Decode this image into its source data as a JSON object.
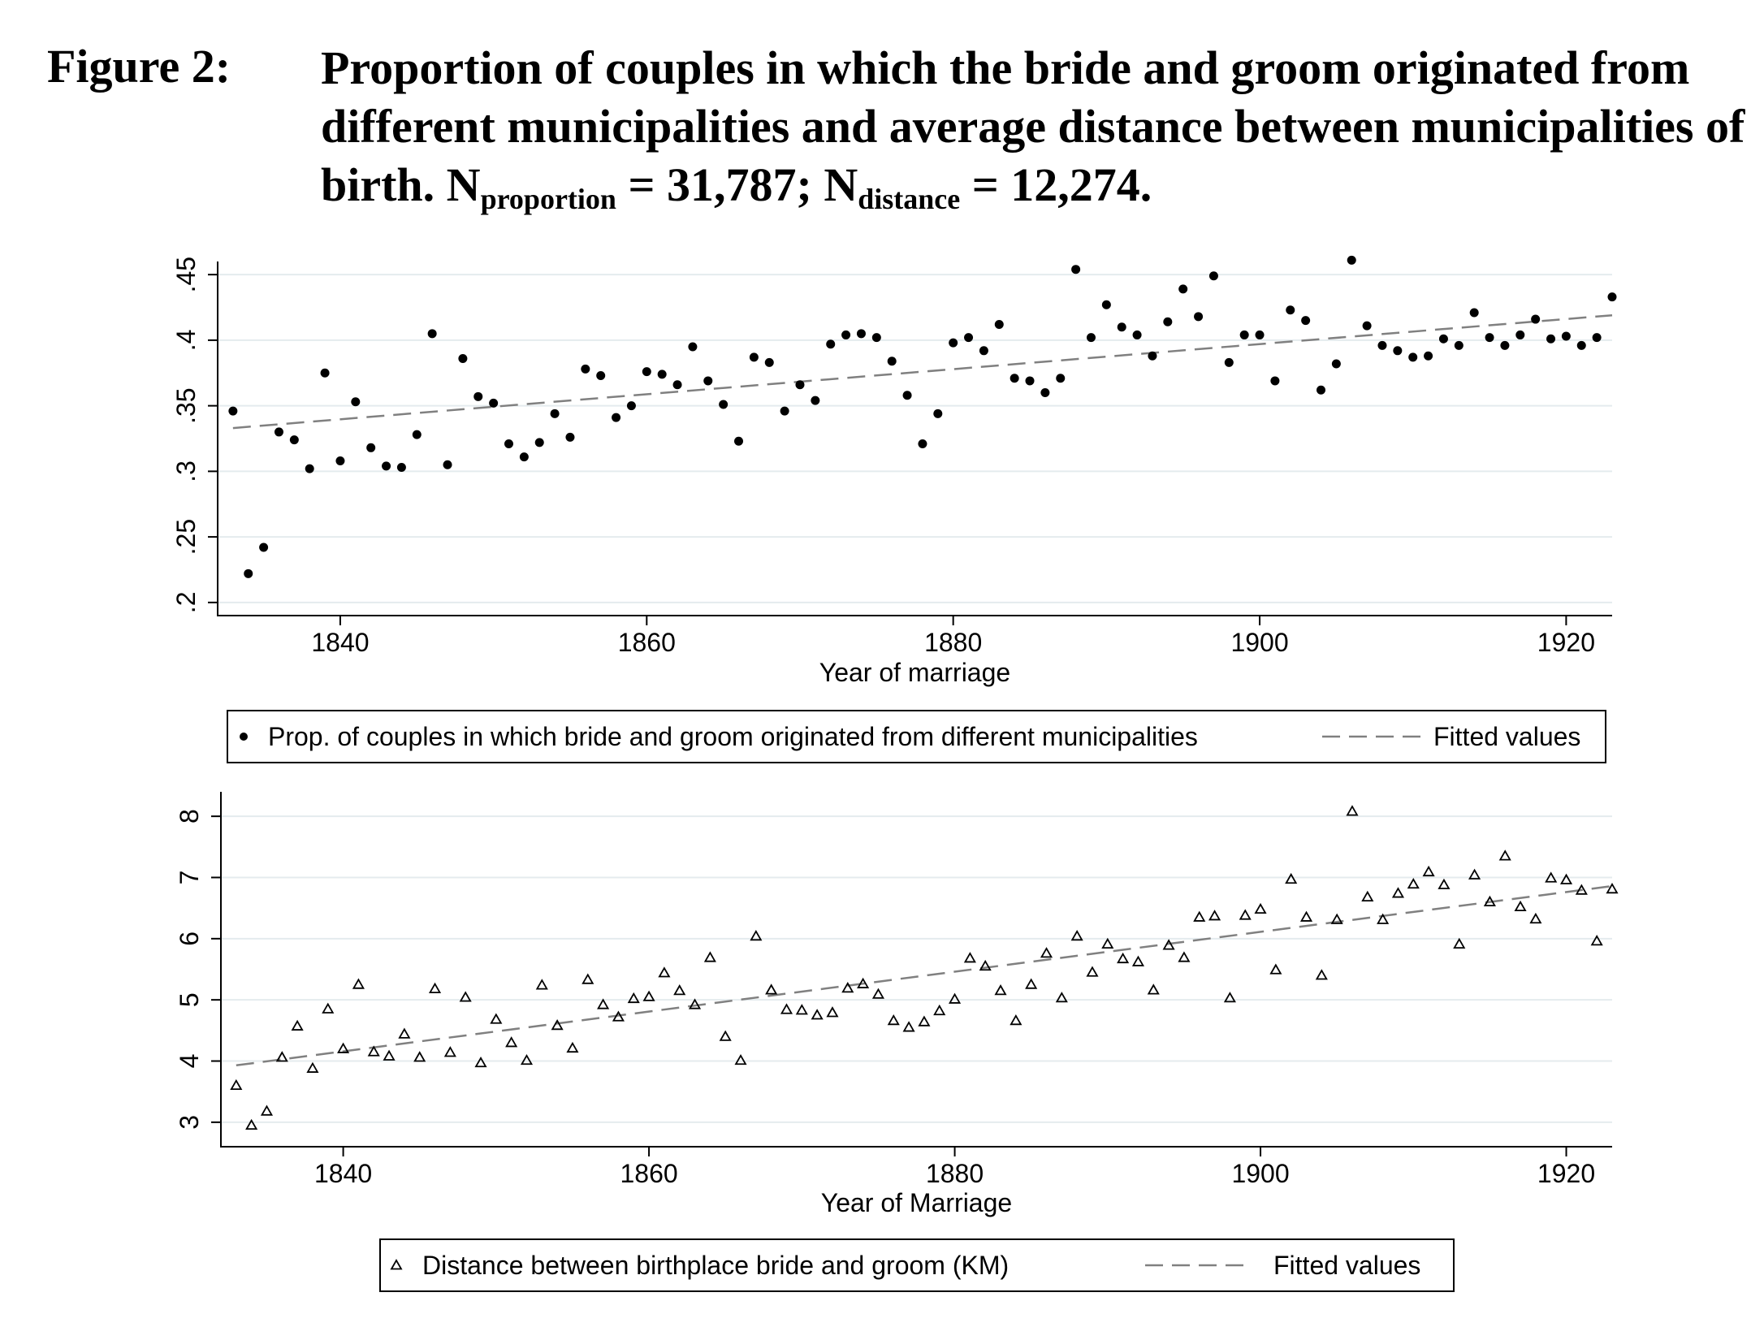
{
  "figure": {
    "label": "Figure 2:",
    "title_main": "Proportion of couples in which the bride and groom originated from different municipalities and average distance between municipalities of birth. N",
    "title_sub1": "proportion",
    "title_mid": " = 31,787; N",
    "title_sub2": "distance",
    "title_end": " = 12,274."
  },
  "chart_data": [
    {
      "type": "scatter",
      "xlabel": "Year of marriage",
      "ylabel": "",
      "xlim": [
        1832,
        1923
      ],
      "ylim": [
        0.19,
        0.46
      ],
      "xticks": [
        1840,
        1860,
        1880,
        1900,
        1920
      ],
      "xtick_labels": [
        "1840",
        "1860",
        "1880",
        "1900",
        "1920"
      ],
      "yticks": [
        0.2,
        0.25,
        0.3,
        0.35,
        0.4,
        0.45
      ],
      "ytick_labels": [
        ".2",
        ".25",
        ".3",
        ".35",
        ".4",
        ".45"
      ],
      "grid": true,
      "legend_position": "bottom",
      "marker": "circle",
      "series": [
        {
          "name": "Prop. of couples in which bride and groom originated from different municipalities",
          "x": [
            1833,
            1834,
            1835,
            1836,
            1837,
            1838,
            1839,
            1840,
            1841,
            1842,
            1843,
            1844,
            1845,
            1846,
            1847,
            1848,
            1849,
            1850,
            1851,
            1852,
            1853,
            1854,
            1855,
            1856,
            1857,
            1858,
            1859,
            1860,
            1861,
            1862,
            1863,
            1864,
            1865,
            1866,
            1867,
            1868,
            1869,
            1870,
            1871,
            1872,
            1873,
            1874,
            1875,
            1876,
            1877,
            1878,
            1879,
            1880,
            1881,
            1882,
            1883,
            1884,
            1885,
            1886,
            1887,
            1888,
            1889,
            1890,
            1891,
            1892,
            1893,
            1894,
            1895,
            1896,
            1897,
            1898,
            1899,
            1900,
            1901,
            1902,
            1903,
            1904,
            1905,
            1906,
            1907,
            1908,
            1909,
            1910,
            1911,
            1912,
            1913,
            1914,
            1915,
            1916,
            1917,
            1918,
            1919,
            1920,
            1921,
            1922,
            1923
          ],
          "y": [
            0.346,
            0.222,
            0.242,
            0.33,
            0.324,
            0.302,
            0.375,
            0.308,
            0.353,
            0.318,
            0.304,
            0.303,
            0.328,
            0.405,
            0.305,
            0.386,
            0.357,
            0.352,
            0.321,
            0.311,
            0.322,
            0.344,
            0.326,
            0.378,
            0.373,
            0.341,
            0.35,
            0.376,
            0.374,
            0.366,
            0.395,
            0.369,
            0.351,
            0.323,
            0.387,
            0.383,
            0.346,
            0.366,
            0.354,
            0.397,
            0.404,
            0.405,
            0.402,
            0.384,
            0.358,
            0.321,
            0.344,
            0.398,
            0.402,
            0.392,
            0.412,
            0.371,
            0.369,
            0.36,
            0.371,
            0.454,
            0.402,
            0.427,
            0.41,
            0.404,
            0.388,
            0.414,
            0.439,
            0.418,
            0.449,
            0.383,
            0.404,
            0.404,
            0.369,
            0.423,
            0.415,
            0.362,
            0.382,
            0.461,
            0.411,
            0.396,
            0.392,
            0.387,
            0.388,
            0.401,
            0.396,
            0.421,
            0.402,
            0.396,
            0.404,
            0.416,
            0.401,
            0.403,
            0.396,
            0.402,
            0.433
          ]
        },
        {
          "name": "Fitted values",
          "type": "line",
          "style": "dashed",
          "x": [
            1833,
            1923
          ],
          "y": [
            0.333,
            0.419
          ]
        }
      ]
    },
    {
      "type": "scatter",
      "xlabel": "Year of Marriage",
      "ylabel": "",
      "xlim": [
        1832,
        1923
      ],
      "ylim": [
        2.6,
        8.4
      ],
      "xticks": [
        1840,
        1860,
        1880,
        1900,
        1920
      ],
      "xtick_labels": [
        "1840",
        "1860",
        "1880",
        "1900",
        "1920"
      ],
      "yticks": [
        3,
        4,
        5,
        6,
        7,
        8
      ],
      "ytick_labels": [
        "3",
        "4",
        "5",
        "6",
        "7",
        "8"
      ],
      "grid": true,
      "legend_position": "bottom",
      "marker": "triangle",
      "series": [
        {
          "name": "Distance between birthplace bride and groom (KM)",
          "x": [
            1833,
            1834,
            1835,
            1836,
            1837,
            1838,
            1839,
            1840,
            1841,
            1842,
            1843,
            1844,
            1845,
            1846,
            1847,
            1848,
            1849,
            1850,
            1851,
            1852,
            1853,
            1854,
            1855,
            1856,
            1857,
            1858,
            1859,
            1860,
            1861,
            1862,
            1863,
            1864,
            1865,
            1866,
            1867,
            1868,
            1869,
            1870,
            1871,
            1872,
            1873,
            1874,
            1875,
            1876,
            1877,
            1878,
            1879,
            1880,
            1881,
            1882,
            1883,
            1884,
            1885,
            1886,
            1887,
            1888,
            1889,
            1890,
            1891,
            1892,
            1893,
            1894,
            1895,
            1896,
            1897,
            1898,
            1899,
            1900,
            1901,
            1902,
            1903,
            1904,
            1905,
            1906,
            1907,
            1908,
            1909,
            1910,
            1911,
            1912,
            1913,
            1914,
            1915,
            1916,
            1917,
            1918,
            1919,
            1920,
            1921,
            1922,
            1923
          ],
          "y": [
            3.6,
            2.95,
            3.18,
            4.06,
            4.57,
            3.88,
            4.85,
            4.2,
            5.25,
            4.15,
            4.08,
            4.44,
            4.06,
            5.18,
            4.14,
            5.04,
            3.97,
            4.68,
            4.3,
            4.01,
            5.24,
            4.58,
            4.21,
            5.33,
            4.92,
            4.72,
            5.02,
            5.05,
            5.44,
            5.15,
            4.92,
            5.69,
            4.4,
            4.01,
            6.04,
            5.16,
            4.84,
            4.83,
            4.75,
            4.79,
            5.19,
            5.26,
            5.09,
            4.66,
            4.55,
            4.64,
            4.82,
            5.01,
            5.68,
            5.55,
            5.15,
            4.66,
            5.25,
            5.76,
            5.03,
            6.04,
            5.45,
            5.91,
            5.67,
            5.62,
            5.16,
            5.89,
            5.69,
            6.35,
            6.37,
            5.03,
            6.38,
            6.48,
            5.49,
            6.97,
            6.35,
            5.4,
            6.31,
            8.08,
            6.68,
            6.31,
            6.74,
            6.89,
            7.09,
            6.88,
            5.91,
            7.04,
            6.6,
            7.35,
            6.52,
            6.32,
            6.99,
            6.96,
            6.79,
            5.96,
            6.81
          ]
        },
        {
          "name": "Fitted values",
          "type": "line",
          "style": "dashed",
          "x": [
            1833,
            1923
          ],
          "y": [
            3.93,
            6.86
          ]
        }
      ]
    }
  ],
  "colors": {
    "marker": "#000000",
    "fit_line": "#808080",
    "grid": "#e4ebee",
    "axis": "#000000"
  }
}
